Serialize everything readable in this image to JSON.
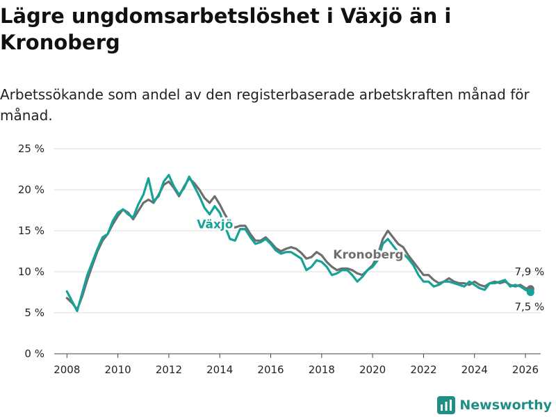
{
  "title": "Lägre ungdomsarbetslöshet i Växjö än i Kronoberg",
  "subtitle": "Arbetssökande som andel av den registerbaserade arbetskraften månad för månad.",
  "brand": {
    "name": "Newsworthy",
    "icon": "newsworthy-logo-icon"
  },
  "colors": {
    "vaxjo": "#14a396",
    "kronoberg": "#6e6e6e",
    "grid": "#dcdcdc"
  },
  "chart_data": {
    "type": "line",
    "title": "Lägre ungdomsarbetslöshet i Växjö än i Kronoberg",
    "xlabel": "",
    "ylabel": "",
    "xlim": [
      2007.5,
      2026.6
    ],
    "ylim": [
      0,
      25
    ],
    "grid": true,
    "x_ticks": [
      2008,
      2010,
      2012,
      2014,
      2016,
      2018,
      2020,
      2022,
      2024,
      2026
    ],
    "y_ticks": [
      0,
      5,
      10,
      15,
      20,
      25
    ],
    "y_tick_labels": [
      "0 %",
      "5 %",
      "10 %",
      "15 %",
      "20 %",
      "25 %"
    ],
    "series": [
      {
        "name": "Kronoberg",
        "label": "Kronoberg",
        "color": "#6e6e6e",
        "end_label": "7,9 %",
        "points": [
          [
            2008.0,
            6.8
          ],
          [
            2008.2,
            6.2
          ],
          [
            2008.4,
            5.4
          ],
          [
            2008.6,
            7.0
          ],
          [
            2008.8,
            9.0
          ],
          [
            2009.0,
            10.8
          ],
          [
            2009.2,
            12.5
          ],
          [
            2009.4,
            13.8
          ],
          [
            2009.6,
            14.6
          ],
          [
            2009.8,
            15.8
          ],
          [
            2010.0,
            16.8
          ],
          [
            2010.2,
            17.6
          ],
          [
            2010.4,
            17.2
          ],
          [
            2010.6,
            16.4
          ],
          [
            2010.8,
            17.4
          ],
          [
            2011.0,
            18.4
          ],
          [
            2011.2,
            18.8
          ],
          [
            2011.4,
            18.4
          ],
          [
            2011.6,
            19.4
          ],
          [
            2011.8,
            20.6
          ],
          [
            2012.0,
            21.0
          ],
          [
            2012.2,
            20.2
          ],
          [
            2012.4,
            19.2
          ],
          [
            2012.6,
            20.4
          ],
          [
            2012.8,
            21.4
          ],
          [
            2013.0,
            20.8
          ],
          [
            2013.2,
            20.0
          ],
          [
            2013.4,
            19.0
          ],
          [
            2013.6,
            18.4
          ],
          [
            2013.8,
            19.2
          ],
          [
            2014.0,
            18.2
          ],
          [
            2014.2,
            17.0
          ],
          [
            2014.4,
            16.0
          ],
          [
            2014.6,
            15.4
          ],
          [
            2014.8,
            15.6
          ],
          [
            2015.0,
            15.6
          ],
          [
            2015.2,
            14.6
          ],
          [
            2015.4,
            13.8
          ],
          [
            2015.6,
            13.8
          ],
          [
            2015.8,
            14.2
          ],
          [
            2016.0,
            13.6
          ],
          [
            2016.2,
            12.9
          ],
          [
            2016.4,
            12.5
          ],
          [
            2016.6,
            12.8
          ],
          [
            2016.8,
            13.0
          ],
          [
            2017.0,
            12.8
          ],
          [
            2017.2,
            12.3
          ],
          [
            2017.4,
            11.6
          ],
          [
            2017.6,
            11.8
          ],
          [
            2017.8,
            12.4
          ],
          [
            2018.0,
            12.0
          ],
          [
            2018.2,
            11.2
          ],
          [
            2018.4,
            10.6
          ],
          [
            2018.6,
            10.2
          ],
          [
            2018.8,
            10.4
          ],
          [
            2019.0,
            10.4
          ],
          [
            2019.2,
            10.2
          ],
          [
            2019.4,
            9.8
          ],
          [
            2019.6,
            9.6
          ],
          [
            2019.8,
            10.2
          ],
          [
            2020.0,
            10.8
          ],
          [
            2020.2,
            12.0
          ],
          [
            2020.4,
            14.0
          ],
          [
            2020.6,
            15.0
          ],
          [
            2020.8,
            14.2
          ],
          [
            2021.0,
            13.4
          ],
          [
            2021.2,
            13.0
          ],
          [
            2021.4,
            12.0
          ],
          [
            2021.6,
            11.2
          ],
          [
            2021.8,
            10.4
          ],
          [
            2022.0,
            9.6
          ],
          [
            2022.2,
            9.6
          ],
          [
            2022.4,
            9.0
          ],
          [
            2022.6,
            8.6
          ],
          [
            2022.8,
            8.8
          ],
          [
            2023.0,
            9.2
          ],
          [
            2023.2,
            8.8
          ],
          [
            2023.4,
            8.6
          ],
          [
            2023.6,
            8.6
          ],
          [
            2023.8,
            8.4
          ],
          [
            2024.0,
            8.8
          ],
          [
            2024.2,
            8.4
          ],
          [
            2024.4,
            8.2
          ],
          [
            2024.6,
            8.6
          ],
          [
            2024.8,
            8.8
          ],
          [
            2025.0,
            8.6
          ],
          [
            2025.2,
            8.8
          ],
          [
            2025.4,
            8.4
          ],
          [
            2025.6,
            8.2
          ],
          [
            2025.8,
            8.4
          ],
          [
            2026.0,
            8.0
          ],
          [
            2026.2,
            7.9
          ]
        ]
      },
      {
        "name": "Växjö",
        "label": "Växjö",
        "color": "#14a396",
        "end_label": "7,5 %",
        "points": [
          [
            2008.0,
            7.6
          ],
          [
            2008.2,
            6.4
          ],
          [
            2008.4,
            5.2
          ],
          [
            2008.6,
            7.4
          ],
          [
            2008.8,
            9.6
          ],
          [
            2009.0,
            11.2
          ],
          [
            2009.2,
            12.8
          ],
          [
            2009.4,
            14.2
          ],
          [
            2009.6,
            14.6
          ],
          [
            2009.8,
            16.2
          ],
          [
            2010.0,
            17.2
          ],
          [
            2010.2,
            17.6
          ],
          [
            2010.4,
            17.0
          ],
          [
            2010.6,
            16.6
          ],
          [
            2010.8,
            18.2
          ],
          [
            2011.0,
            19.4
          ],
          [
            2011.2,
            21.4
          ],
          [
            2011.4,
            18.6
          ],
          [
            2011.6,
            19.2
          ],
          [
            2011.8,
            21.0
          ],
          [
            2012.0,
            21.8
          ],
          [
            2012.2,
            20.4
          ],
          [
            2012.4,
            19.4
          ],
          [
            2012.6,
            20.2
          ],
          [
            2012.8,
            21.6
          ],
          [
            2013.0,
            20.4
          ],
          [
            2013.2,
            19.2
          ],
          [
            2013.4,
            17.8
          ],
          [
            2013.6,
            17.0
          ],
          [
            2013.8,
            18.0
          ],
          [
            2014.0,
            17.2
          ],
          [
            2014.2,
            15.6
          ],
          [
            2014.4,
            14.0
          ],
          [
            2014.6,
            13.8
          ],
          [
            2014.8,
            15.2
          ],
          [
            2015.0,
            15.2
          ],
          [
            2015.2,
            14.2
          ],
          [
            2015.4,
            13.4
          ],
          [
            2015.6,
            13.6
          ],
          [
            2015.8,
            14.0
          ],
          [
            2016.0,
            13.4
          ],
          [
            2016.2,
            12.6
          ],
          [
            2016.4,
            12.2
          ],
          [
            2016.6,
            12.4
          ],
          [
            2016.8,
            12.4
          ],
          [
            2017.0,
            12.0
          ],
          [
            2017.2,
            11.6
          ],
          [
            2017.4,
            10.2
          ],
          [
            2017.6,
            10.6
          ],
          [
            2017.8,
            11.4
          ],
          [
            2018.0,
            11.2
          ],
          [
            2018.2,
            10.6
          ],
          [
            2018.4,
            9.6
          ],
          [
            2018.6,
            9.8
          ],
          [
            2018.8,
            10.2
          ],
          [
            2019.0,
            10.2
          ],
          [
            2019.2,
            9.6
          ],
          [
            2019.4,
            8.8
          ],
          [
            2019.6,
            9.4
          ],
          [
            2019.8,
            10.2
          ],
          [
            2020.0,
            10.6
          ],
          [
            2020.2,
            11.4
          ],
          [
            2020.4,
            13.4
          ],
          [
            2020.6,
            14.0
          ],
          [
            2020.8,
            13.2
          ],
          [
            2021.0,
            12.4
          ],
          [
            2021.2,
            12.2
          ],
          [
            2021.4,
            11.6
          ],
          [
            2021.6,
            10.8
          ],
          [
            2021.8,
            9.6
          ],
          [
            2022.0,
            8.8
          ],
          [
            2022.2,
            8.8
          ],
          [
            2022.4,
            8.2
          ],
          [
            2022.6,
            8.4
          ],
          [
            2022.8,
            8.8
          ],
          [
            2023.0,
            8.8
          ],
          [
            2023.2,
            8.6
          ],
          [
            2023.4,
            8.4
          ],
          [
            2023.6,
            8.2
          ],
          [
            2023.8,
            8.8
          ],
          [
            2024.0,
            8.4
          ],
          [
            2024.2,
            8.0
          ],
          [
            2024.4,
            7.8
          ],
          [
            2024.6,
            8.6
          ],
          [
            2024.8,
            8.6
          ],
          [
            2025.0,
            8.8
          ],
          [
            2025.2,
            9.0
          ],
          [
            2025.4,
            8.2
          ],
          [
            2025.6,
            8.4
          ],
          [
            2025.8,
            8.2
          ],
          [
            2026.0,
            7.8
          ],
          [
            2026.2,
            7.5
          ]
        ]
      }
    ]
  }
}
